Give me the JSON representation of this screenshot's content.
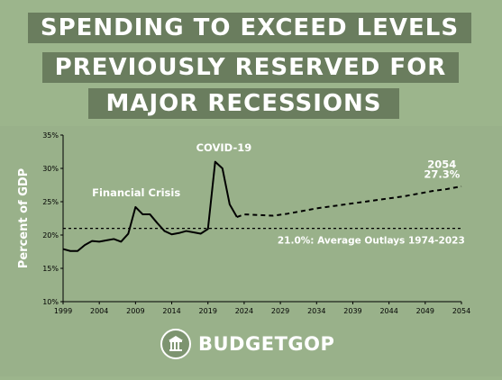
{
  "title": {
    "line1": "SPENDING TO EXCEED LEVELS",
    "line2": "PREVIOUSLY RESERVED FOR",
    "line3": "MAJOR RECESSIONS"
  },
  "brand": {
    "name": "BUDGETGOP",
    "icon": "capitol-seal-icon"
  },
  "colors": {
    "background": "#9cb58c",
    "title_bar": "#6a7d5e",
    "line": "#000000",
    "text": "#ffffff"
  },
  "chart_data": {
    "type": "line",
    "ylabel": "Percent of GDP",
    "xlabel": "",
    "xlim": [
      1999,
      2054
    ],
    "ylim": [
      10,
      35
    ],
    "xticks": [
      "1999",
      "2004",
      "2009",
      "2014",
      "2019",
      "2024",
      "2029",
      "2034",
      "2039",
      "2044",
      "2049",
      "2054"
    ],
    "yticks": [
      "10%",
      "15%",
      "20%",
      "25%",
      "30%",
      "35%"
    ],
    "grid": false,
    "series": [
      {
        "style": "solid",
        "x": [
          1999,
          2000,
          2001,
          2002,
          2003,
          2004,
          2005,
          2006,
          2007,
          2008,
          2009,
          2010,
          2011,
          2012,
          2013,
          2014,
          2015,
          2016,
          2017,
          2018,
          2019,
          2020,
          2021,
          2022,
          2023
        ],
        "y": [
          17.9,
          17.6,
          17.6,
          18.5,
          19.1,
          19.0,
          19.2,
          19.4,
          19.0,
          20.2,
          24.2,
          23.1,
          23.1,
          21.8,
          20.6,
          20.1,
          20.3,
          20.6,
          20.4,
          20.2,
          20.9,
          31.0,
          30.0,
          24.6,
          22.7
        ]
      },
      {
        "style": "dashed",
        "x": [
          2023,
          2024,
          2026,
          2028,
          2030,
          2032,
          2034,
          2036,
          2038,
          2040,
          2042,
          2044,
          2046,
          2048,
          2050,
          2052,
          2054
        ],
        "y": [
          22.7,
          23.1,
          23.0,
          22.9,
          23.2,
          23.6,
          24.0,
          24.3,
          24.6,
          24.9,
          25.2,
          25.5,
          25.8,
          26.2,
          26.6,
          26.9,
          27.3
        ]
      }
    ],
    "reference_line": {
      "y": 21.0,
      "label": "21.0%: Average Outlays 1974-2023"
    },
    "annotations": {
      "financial_crisis": "Financial Crisis",
      "covid": "COVID-19",
      "end_year": "2054",
      "end_value": "27.3%"
    }
  }
}
